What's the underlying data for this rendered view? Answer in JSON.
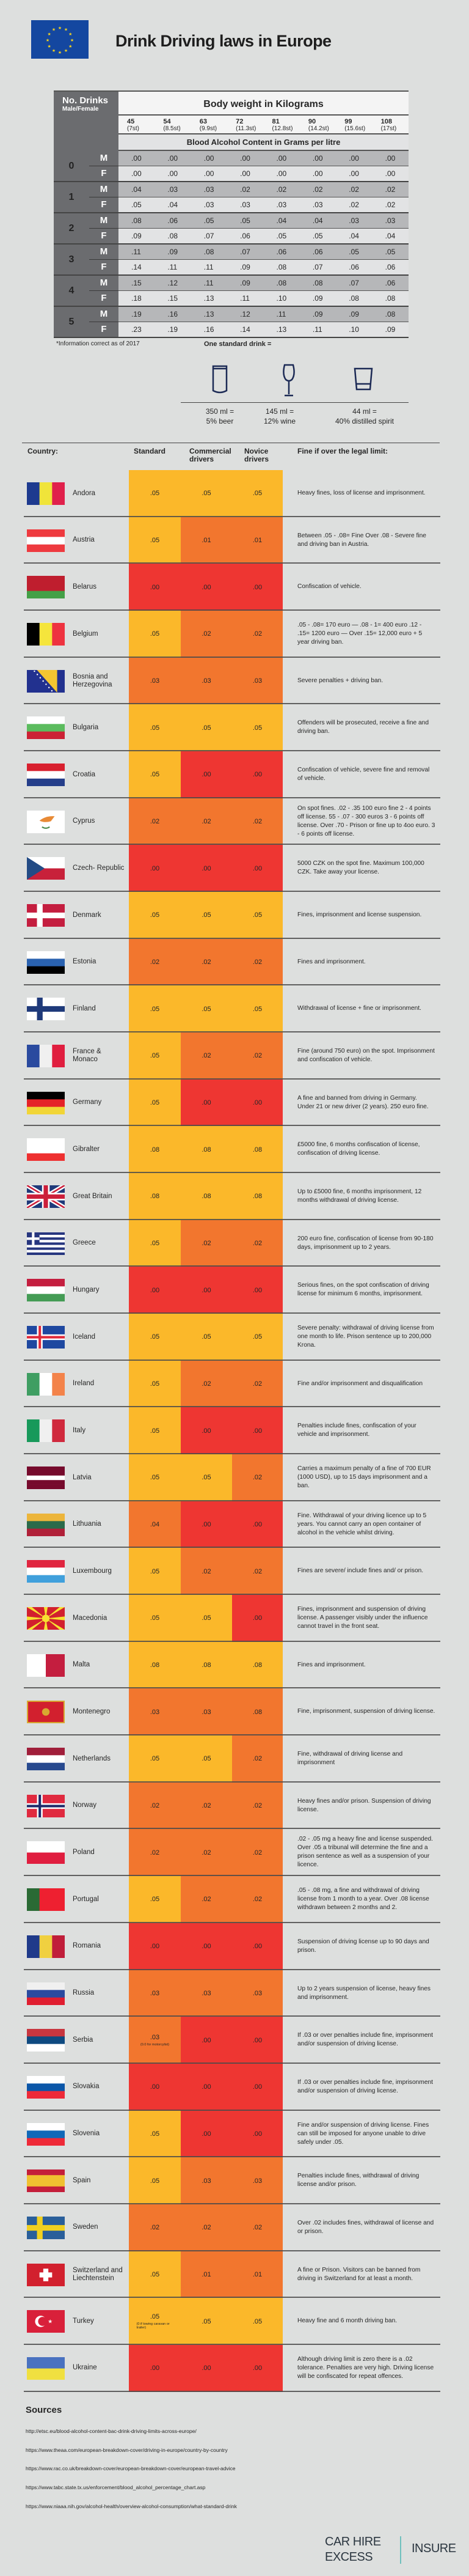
{
  "title": "Drink Driving laws in Europe",
  "bac_table": {
    "corner_title": "No. Drinks",
    "corner_sub": "Male/Female",
    "header": "Body weight in Kilograms",
    "weights": [
      {
        "kg": "45",
        "st": "(7st)"
      },
      {
        "kg": "54",
        "st": "(8.5st)"
      },
      {
        "kg": "63",
        "st": "(9.9st)"
      },
      {
        "kg": "72",
        "st": "(11.3st)"
      },
      {
        "kg": "81",
        "st": "(12.8st)"
      },
      {
        "kg": "90",
        "st": "(14.2st)"
      },
      {
        "kg": "99",
        "st": "(15.6st)"
      },
      {
        "kg": "108",
        "st": "(17st)"
      }
    ],
    "subheader": "Blood Alcohol Content in Grams per litre",
    "groups": [
      {
        "drinks": "0",
        "M": [
          ".00",
          ".00",
          ".00",
          ".00",
          ".00",
          ".00",
          ".00",
          ".00"
        ],
        "F": [
          ".00",
          ".00",
          ".00",
          ".00",
          ".00",
          ".00",
          ".00",
          ".00"
        ]
      },
      {
        "drinks": "1",
        "M": [
          ".04",
          ".03",
          ".03",
          ".02",
          ".02",
          ".02",
          ".02",
          ".02"
        ],
        "F": [
          ".05",
          ".04",
          ".03",
          ".03",
          ".03",
          ".03",
          ".02",
          ".02"
        ]
      },
      {
        "drinks": "2",
        "M": [
          ".08",
          ".06",
          ".05",
          ".05",
          ".04",
          ".04",
          ".03",
          ".03"
        ],
        "F": [
          ".09",
          ".08",
          ".07",
          ".06",
          ".05",
          ".05",
          ".04",
          ".04"
        ]
      },
      {
        "drinks": "3",
        "M": [
          ".11",
          ".09",
          ".08",
          ".07",
          ".06",
          ".06",
          ".05",
          ".05"
        ],
        "F": [
          ".14",
          ".11",
          ".11",
          ".09",
          ".08",
          ".07",
          ".06",
          ".06"
        ]
      },
      {
        "drinks": "4",
        "M": [
          ".15",
          ".12",
          ".11",
          ".09",
          ".08",
          ".08",
          ".07",
          ".06"
        ],
        "F": [
          ".18",
          ".15",
          ".13",
          ".11",
          ".10",
          ".09",
          ".08",
          ".08"
        ]
      },
      {
        "drinks": "5",
        "M": [
          ".19",
          ".16",
          ".13",
          ".12",
          ".11",
          ".09",
          ".09",
          ".08"
        ],
        "F": [
          ".23",
          ".19",
          ".16",
          ".14",
          ".13",
          ".11",
          ".10",
          ".09"
        ]
      }
    ],
    "male_label": "M",
    "female_label": "F"
  },
  "footnote": "*Information correct as of 2017",
  "standard_drink": {
    "title": "One standard drink =",
    "items": [
      {
        "icon": "beer-can-icon",
        "line1": "350 ml =",
        "line2": "5% beer"
      },
      {
        "icon": "wine-glass-icon",
        "line1": "145 ml =",
        "line2": "12% wine"
      },
      {
        "icon": "shot-glass-icon",
        "line1": "44 ml =",
        "line2": "40%  distilled spirit"
      }
    ]
  },
  "columns": {
    "country": "Country:",
    "standard": "Standard",
    "commercial": "Commercial drivers",
    "novice": "Novice drivers",
    "fine": "Fine if over the legal limit:"
  },
  "level_colors": {
    "Y": "#fbb82a",
    "O": "#f2762e",
    "R": "#ee3632"
  },
  "countries": [
    {
      "name": "Andora",
      "limits": [
        ".05",
        ".05",
        ".05"
      ],
      "levels": "YYY",
      "fine": "Heavy fines, loss of license and imprisonment.",
      "flag": {
        "type": "v",
        "colors": [
          "#1d3a8f",
          "#f0e43a",
          "#e0204b"
        ]
      }
    },
    {
      "name": "Austria",
      "limits": [
        ".05",
        ".01",
        ".01"
      ],
      "levels": "YOO",
      "fine": "Between .05 - .08= Fine Over .08 - Severe fine and driving ban in Austria.",
      "flag": {
        "type": "h",
        "colors": [
          "#ee3a3f",
          "#ffffff",
          "#ee3a3f"
        ]
      }
    },
    {
      "name": "Belarus",
      "limits": [
        ".00",
        ".00",
        ".00"
      ],
      "levels": "RRR",
      "fine": "Confiscation of vehicle.",
      "flag": {
        "type": "h",
        "colors": [
          "#bf1e2e",
          "#bf1e2e",
          "#44a047"
        ]
      }
    },
    {
      "name": "Belgium",
      "limits": [
        ".05",
        ".02",
        ".02"
      ],
      "levels": "YOO",
      "fine": ".05 - .08= 170 euro — .08 - 1= 400 euro .12 - .15= 1200 euro — Over .15= 12,000 euro + 5 year driving ban.",
      "flag": {
        "type": "v",
        "colors": [
          "#000000",
          "#f5e53c",
          "#ee3340"
        ]
      }
    },
    {
      "name": "Bosnia and Herzegovina",
      "limits": [
        ".03",
        ".03",
        ".03"
      ],
      "levels": "OOO",
      "fine": "Severe penalties + driving ban.",
      "flag": {
        "type": "bosnia",
        "colors": [
          "#22318f",
          "#f4c531",
          "#ffffff"
        ]
      }
    },
    {
      "name": "Bulgaria",
      "limits": [
        ".05",
        ".05",
        ".05"
      ],
      "levels": "YYY",
      "fine": "Offenders will be prosecuted, receive a fine and driving ban.",
      "flag": {
        "type": "h",
        "colors": [
          "#ffffff",
          "#5bbc5e",
          "#cc2235"
        ]
      }
    },
    {
      "name": "Croatia",
      "limits": [
        ".05",
        ".00",
        ".00"
      ],
      "levels": "YRR",
      "fine": "Confiscation of vehicle, severe fine and removal of vehicle.",
      "flag": {
        "type": "h",
        "colors": [
          "#d8202e",
          "#ffffff",
          "#253e8a"
        ]
      }
    },
    {
      "name": "Cyprus",
      "limits": [
        ".02",
        ".02",
        ".02"
      ],
      "levels": "OOO",
      "fine": "On spot fines. .02 - .35 100 euro fine 2 - 4 points off license. 55 - .07 - 300 euros 3 - 6 points off license. Over .70 - Prison or fine up to 4oo euro. 3 - 6 points off license.",
      "flag": {
        "type": "cyprus",
        "colors": [
          "#ffffff",
          "#e88a35",
          "#4a8a4a"
        ]
      }
    },
    {
      "name": "Czech- Republic",
      "limits": [
        ".00",
        ".00",
        ".00"
      ],
      "levels": "RRR",
      "fine": "5000 CZK on the spot fine. Maximum 100,000 CZK. Take away your license.",
      "flag": {
        "type": "czech",
        "colors": [
          "#ffffff",
          "#c8213a",
          "#234b85"
        ]
      }
    },
    {
      "name": "Denmark",
      "limits": [
        ".05",
        ".05",
        ".05"
      ],
      "levels": "YYY",
      "fine": "Fines, imprisonment and license suspension.",
      "flag": {
        "type": "nordic",
        "colors": [
          "#c41e3f",
          "#ffffff"
        ]
      }
    },
    {
      "name": "Estonia",
      "limits": [
        ".02",
        ".02",
        ".02"
      ],
      "levels": "OOO",
      "fine": "Fines and imprisonment.",
      "flag": {
        "type": "h",
        "colors": [
          "#ffffff",
          "#2a62b0",
          "#000000"
        ]
      }
    },
    {
      "name": "Finland",
      "limits": [
        ".05",
        ".05",
        ".05"
      ],
      "levels": "YYY",
      "fine": "Withdrawal of license + fine or imprisonment.",
      "flag": {
        "type": "nordic",
        "colors": [
          "#ffffff",
          "#1f3a7a"
        ]
      }
    },
    {
      "name": "France & Monaco",
      "limits": [
        ".05",
        ".02",
        ".02"
      ],
      "levels": "YOO",
      "fine": "Fine (around 750 euro) on the spot. Imprisonment and confiscation of vehicle.",
      "flag": {
        "type": "v",
        "colors": [
          "#2a4a9f",
          "#f0f0f0",
          "#e01e3f"
        ]
      }
    },
    {
      "name": "Germany",
      "limits": [
        ".05",
        ".00",
        ".00"
      ],
      "levels": "YRR",
      "fine": "A fine and banned from driving in Germany. Under 21 or new driver (2 years). 250 euro fine.",
      "flag": {
        "type": "h",
        "colors": [
          "#000000",
          "#e52228",
          "#f1d537"
        ]
      }
    },
    {
      "name": "Gibralter",
      "limits": [
        ".08",
        ".08",
        ".08"
      ],
      "levels": "YYY",
      "fine": "£5000 fine, 6 months confiscation of license, confiscation of driving license.",
      "flag": {
        "type": "h",
        "colors": [
          "#ffffff",
          "#ffffff",
          "#ee3030"
        ]
      }
    },
    {
      "name": "Great Britain",
      "limits": [
        ".08",
        ".08",
        ".08"
      ],
      "levels": "YYY",
      "fine": "Up to £5000 fine, 6 months imprisonment, 12 months withdrawal of driving license.",
      "flag": {
        "type": "gb",
        "colors": [
          "#1f3a7a",
          "#ffffff",
          "#cc1f3a"
        ]
      }
    },
    {
      "name": "Greece",
      "limits": [
        ".05",
        ".02",
        ".02"
      ],
      "levels": "YOO",
      "fine": "200 euro fine, confiscation of license from 90-180 days, imprisonment up to 2 years.",
      "flag": {
        "type": "greece",
        "colors": [
          "#27367f",
          "#ffffff"
        ]
      }
    },
    {
      "name": "Hungary",
      "limits": [
        ".00",
        ".00",
        ".00"
      ],
      "levels": "RRR",
      "fine": "Serious fines, on the spot confiscation of driving license for minimum 6 months, imprisonment.",
      "flag": {
        "type": "h",
        "colors": [
          "#c41e3f",
          "#ffffff",
          "#449c55"
        ]
      }
    },
    {
      "name": "Iceland",
      "limits": [
        ".05",
        ".05",
        ".05"
      ],
      "levels": "YYY",
      "fine": "Severe penalty: withdrawal of driving license from one month to life. Prison sentence up to 200,000 Krona.",
      "flag": {
        "type": "nordic",
        "colors": [
          "#1e48a0",
          "#ffffff",
          "#e02a3a"
        ]
      }
    },
    {
      "name": "Ireland",
      "limits": [
        ".05",
        ".02",
        ".02"
      ],
      "levels": "YOO",
      "fine": "Fine and/or imprisonment and disqualification",
      "flag": {
        "type": "v",
        "colors": [
          "#3f9e62",
          "#ffffff",
          "#f3834a"
        ]
      }
    },
    {
      "name": "Italy",
      "limits": [
        ".05",
        ".00",
        ".00"
      ],
      "levels": "YRR",
      "fine": "Penalties include fines, confiscation of your vehicle and imprisonment.",
      "flag": {
        "type": "v",
        "colors": [
          "#17995a",
          "#f0f0f0",
          "#d0293d"
        ]
      }
    },
    {
      "name": "Latvia",
      "limits": [
        ".05",
        ".05",
        ".02"
      ],
      "levels": "YYO",
      "fine": "Carries a maximum penalty of a fine of 700 EUR (1000 USD), up to 15 days imprisonment and a ban.",
      "flag": {
        "type": "h",
        "colors": [
          "#760a2c",
          "#760a2c",
          "#ffffff",
          "#760a2c",
          "#760a2c"
        ]
      }
    },
    {
      "name": "Lithuania",
      "limits": [
        ".04",
        ".00",
        ".00"
      ],
      "levels": "ORR",
      "fine": "Fine. Withdrawal of your driving licence up to 5 years. You cannot carry an open container of alcohol in the vehicle whilst driving.",
      "flag": {
        "type": "h",
        "colors": [
          "#ecb53b",
          "#2a6a4a",
          "#b02038"
        ]
      }
    },
    {
      "name": "Luxembourg",
      "limits": [
        ".05",
        ".02",
        ".02"
      ],
      "levels": "YOO",
      "fine": "Fines are severe/ include fines and/ or prison.",
      "flag": {
        "type": "h",
        "colors": [
          "#e0253f",
          "#ffffff",
          "#40a0dc"
        ]
      }
    },
    {
      "name": "Macedonia",
      "limits": [
        ".05",
        ".05",
        ".00"
      ],
      "levels": "YYR",
      "fine": "Fines, imprisonment and suspension of driving license. A passenger visibly under the influence cannot travel in the front seat.",
      "flag": {
        "type": "macedonia",
        "colors": [
          "#d2202e",
          "#f7e031"
        ]
      }
    },
    {
      "name": "Malta",
      "limits": [
        ".08",
        ".08",
        ".08"
      ],
      "levels": "YYY",
      "fine": "Fines and imprisonment.",
      "flag": {
        "type": "v",
        "colors": [
          "#ffffff",
          "#c41e3f"
        ]
      }
    },
    {
      "name": "Montenegro",
      "limits": [
        ".03",
        ".03",
        ".08"
      ],
      "levels": "OOO",
      "fine": "Fine, imprisonment, suspension of driving license.",
      "flag": {
        "type": "montenegro",
        "colors": [
          "#d2202e",
          "#d8a930"
        ]
      }
    },
    {
      "name": "Netherlands",
      "limits": [
        ".05",
        ".05",
        ".02"
      ],
      "levels": "YYO",
      "fine": "Fine, withdrawal of driving license and imprisonment",
      "flag": {
        "type": "h",
        "colors": [
          "#a01e3a",
          "#ffffff",
          "#284a8f"
        ]
      }
    },
    {
      "name": "Norway",
      "limits": [
        ".02",
        ".02",
        ".02"
      ],
      "levels": "OOO",
      "fine": "Heavy fines and/or prison. Suspension of driving license.",
      "flag": {
        "type": "nordic",
        "colors": [
          "#e02a3f",
          "#ffffff",
          "#1e2a6a"
        ]
      }
    },
    {
      "name": "Poland",
      "limits": [
        ".02",
        ".02",
        ".02"
      ],
      "levels": "OOO",
      "fine": ".02 - .05 mg a heavy fine and license suspended. Over .05 a tribunal will determine the fine and a prison sentence as well as a suspension of your licence.",
      "flag": {
        "type": "h",
        "colors": [
          "#ffffff",
          "#e01e3f"
        ]
      }
    },
    {
      "name": "Portugal",
      "limits": [
        ".05",
        ".02",
        ".02"
      ],
      "levels": "YOO",
      "fine": ".05 - .08 mg, a fine and withdrawal of driving license from 1 month to a year. Over .08 license withdrawn between 2 months and 2.",
      "flag": {
        "type": "v",
        "colors": [
          "#2a6a34",
          "#ee2030",
          "#ee2030"
        ]
      }
    },
    {
      "name": "Romania",
      "limits": [
        ".00",
        ".00",
        ".00"
      ],
      "levels": "RRR",
      "fine": "Suspension of driving license up to 90 days and prison.",
      "flag": {
        "type": "v",
        "colors": [
          "#1f3a8a",
          "#f0d040",
          "#c01e3a"
        ]
      }
    },
    {
      "name": "Russia",
      "limits": [
        ".03",
        ".03",
        ".03"
      ],
      "levels": "OOO",
      "fine": "Up to 2 years suspension of license, heavy fines and imprisonment.",
      "flag": {
        "type": "h",
        "colors": [
          "#f0f0f0",
          "#2a4aa0",
          "#e01e30"
        ]
      }
    },
    {
      "name": "Serbia",
      "limits": [
        ".03",
        ".00",
        ".00"
      ],
      "limit_note": "(0.0 for motorcylist)",
      "levels": "ORR",
      "fine": "If .03 or over penalties include fine, imprisonment and/or suspension of driving license.",
      "flag": {
        "type": "h",
        "colors": [
          "#c8363f",
          "#0f4a80",
          "#ffffff"
        ]
      }
    },
    {
      "name": "Slovakia",
      "limits": [
        ".00",
        ".00",
        ".00"
      ],
      "levels": "RRR",
      "fine": "If .03 or over penalties include fine, imprisonment and/or suspension of driving license.",
      "flag": {
        "type": "h",
        "colors": [
          "#ffffff",
          "#0b56a8",
          "#ee2a38"
        ]
      }
    },
    {
      "name": "Slovenia",
      "limits": [
        ".05",
        ".00",
        ".00"
      ],
      "levels": "YRR",
      "fine": "Fine and/or suspension of driving license. Fines can still be imposed for anyone unable to drive safely under .05.",
      "flag": {
        "type": "h",
        "colors": [
          "#ffffff",
          "#1068b8",
          "#ee2a38"
        ]
      }
    },
    {
      "name": "Spain",
      "limits": [
        ".05",
        ".03",
        ".03"
      ],
      "levels": "YOO",
      "fine": "Penalties include fines, withdrawal of driving license and/or prison.",
      "flag": {
        "type": "h",
        "colors": [
          "#c41e3a",
          "#f0c030",
          "#f0c030",
          "#c41e3a"
        ]
      }
    },
    {
      "name": "Sweden",
      "limits": [
        ".02",
        ".02",
        ".02"
      ],
      "levels": "OOO",
      "fine": "Over .02 includes fines, withdrawal of license and or prison.",
      "flag": {
        "type": "nordic",
        "colors": [
          "#2a5f9a",
          "#f0d020"
        ]
      }
    },
    {
      "name": "Switzerland and Liechtenstein",
      "limits": [
        ".05",
        ".01",
        ".01"
      ],
      "levels": "YOO",
      "fine": "A fine or Prison. Visitors can be  banned from driving in Switzerland for at least a month.",
      "flag": {
        "type": "swiss",
        "colors": [
          "#d2202e",
          "#ffffff"
        ]
      }
    },
    {
      "name": "Turkey",
      "limits": [
        ".05",
        ".05",
        ".05"
      ],
      "limit_note": "(0 if towing caravan or trailer)",
      "levels": "YYY",
      "fine": "Heavy fine and 6 month driving ban.",
      "flag": {
        "type": "turkey",
        "colors": [
          "#d9203a",
          "#ffffff"
        ]
      }
    },
    {
      "name": "Ukraine",
      "limits": [
        ".00",
        ".00",
        ".00"
      ],
      "levels": "RRR",
      "fine": "Although driving limit is zero there is a .02 tolerance. Penalties are very high. Driving license will be confiscated for repeat offences.",
      "flag": {
        "type": "h",
        "colors": [
          "#4a72c0",
          "#f0e040"
        ]
      }
    }
  ],
  "sources": {
    "title": "Sources",
    "links": [
      "http://etsc.eu/blood-alcohol-content-bac-drink-driving-limits-across-europe/",
      "https://www.theaa.com/european-breakdown-cover/driving-in-europe/country-by-country",
      "https://www.rac.co.uk/breakdown-cover/european-breakdown-cover/european-travel-advice",
      "https://www.tabc.state.tx.us/enforcement/blood_alcohol_percentage_chart.asp",
      "https://www.niaaa.nih.gov/alcohol-health/overview-alcohol-consumption/what-standard-drink"
    ]
  },
  "logo": {
    "line1": "CAR HIRE",
    "line2": "EXCESS",
    "right": "INSURE",
    "accent": "#6fc0bd"
  }
}
